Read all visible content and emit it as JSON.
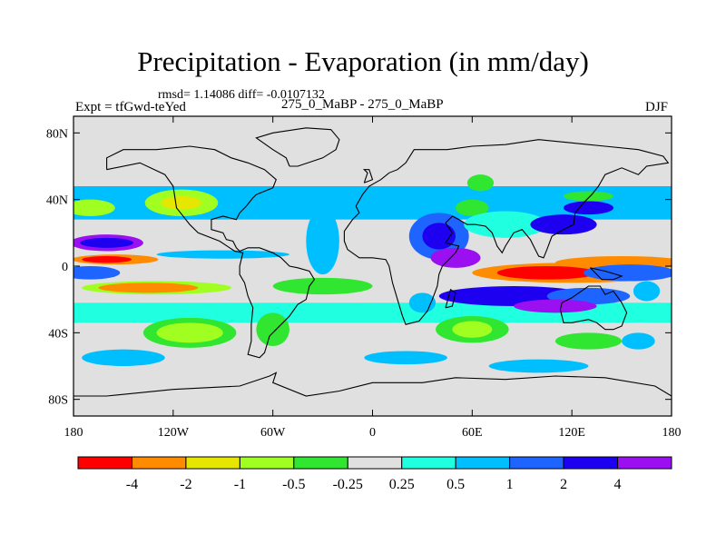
{
  "chart_data": {
    "type": "heatmap",
    "title": "Precipitation - Evaporation (in mm/day)",
    "stats_line": "rmsd= 1.14086 diff= -0.0107132",
    "left_label": "Expt = tfGwd-teYed",
    "center_label": "275_0_MaBP - 275_0_MaBP",
    "right_label": "DJF",
    "x_ticks": [
      "180",
      "120W",
      "60W",
      "0",
      "60E",
      "120E",
      "180"
    ],
    "x_tick_values": [
      -180,
      -120,
      -60,
      0,
      60,
      120,
      180
    ],
    "y_ticks": [
      "80N",
      "40N",
      "0",
      "40S",
      "80S"
    ],
    "y_tick_values": [
      80,
      40,
      0,
      -40,
      -80
    ],
    "xlim": [
      -180,
      180
    ],
    "ylim": [
      -90,
      90
    ],
    "colorbar": {
      "colors": [
        "#ff0000",
        "#ff8c00",
        "#e6e600",
        "#a0ff20",
        "#30e630",
        "#e0e0e0",
        "#20ffe0",
        "#00bfff",
        "#1e64ff",
        "#1e00f0",
        "#9b10f0"
      ],
      "labels": [
        "-4",
        "-2",
        "-1",
        "-0.5",
        "-0.25",
        "0.25",
        "0.5",
        "1",
        "2",
        "4"
      ]
    },
    "regions": [
      {
        "type": "band",
        "lat_min": 28,
        "lat_max": 48,
        "lon_min": -180,
        "lon_max": 180,
        "level": 7
      },
      {
        "type": "band",
        "lat_min": -34,
        "lat_max": -22,
        "lon_min": -180,
        "lon_max": 180,
        "level": 6
      },
      {
        "type": "blob",
        "lon": -115,
        "lat": 38,
        "dlon": 22,
        "dlat": 8,
        "level": 3
      },
      {
        "type": "blob",
        "lon": -115,
        "lat": 38,
        "dlon": 12,
        "dlat": 4,
        "level": 2
      },
      {
        "type": "blob",
        "lon": -170,
        "lat": 35,
        "dlon": 15,
        "dlat": 5,
        "level": 3
      },
      {
        "type": "blob",
        "lon": -160,
        "lat": 14,
        "dlon": 22,
        "dlat": 5,
        "level": 10
      },
      {
        "type": "blob",
        "lon": -160,
        "lat": 14,
        "dlon": 16,
        "dlat": 3,
        "level": 9
      },
      {
        "type": "blob",
        "lon": -155,
        "lat": 4,
        "dlon": 26,
        "dlat": 3,
        "level": 1
      },
      {
        "type": "blob",
        "lon": -160,
        "lat": 4,
        "dlon": 15,
        "dlat": 2,
        "level": 0
      },
      {
        "type": "blob",
        "lon": -90,
        "lat": 7,
        "dlon": 40,
        "dlat": 2.5,
        "level": 7
      },
      {
        "type": "blob",
        "lon": -130,
        "lat": -13,
        "dlon": 45,
        "dlat": 4,
        "level": 3
      },
      {
        "type": "blob",
        "lon": -135,
        "lat": -13,
        "dlon": 30,
        "dlat": 3,
        "level": 1
      },
      {
        "type": "blob",
        "lon": -170,
        "lat": -4,
        "dlon": 18,
        "dlat": 4,
        "level": 8
      },
      {
        "type": "blob",
        "lon": -110,
        "lat": -40,
        "dlon": 28,
        "dlat": 9,
        "level": 4
      },
      {
        "type": "blob",
        "lon": -110,
        "lat": -40,
        "dlon": 20,
        "dlat": 6,
        "level": 3
      },
      {
        "type": "blob",
        "lon": -30,
        "lat": 15,
        "dlon": 10,
        "dlat": 20,
        "level": 7
      },
      {
        "type": "blob",
        "lon": -30,
        "lat": -12,
        "dlon": 30,
        "dlat": 5,
        "level": 4
      },
      {
        "type": "blob",
        "lon": -60,
        "lat": -38,
        "dlon": 10,
        "dlat": 10,
        "level": 4
      },
      {
        "type": "blob",
        "lon": 40,
        "lat": 18,
        "dlon": 18,
        "dlat": 14,
        "level": 8
      },
      {
        "type": "blob",
        "lon": 40,
        "lat": 18,
        "dlon": 10,
        "dlat": 8,
        "level": 9
      },
      {
        "type": "blob",
        "lon": 50,
        "lat": 5,
        "dlon": 15,
        "dlat": 6,
        "level": 10
      },
      {
        "type": "blob",
        "lon": 60,
        "lat": 35,
        "dlon": 10,
        "dlat": 5,
        "level": 4
      },
      {
        "type": "blob",
        "lon": 65,
        "lat": 50,
        "dlon": 8,
        "dlat": 5,
        "level": 4
      },
      {
        "type": "blob",
        "lon": 80,
        "lat": 25,
        "dlon": 25,
        "dlat": 8,
        "level": 6
      },
      {
        "type": "blob",
        "lon": 115,
        "lat": 25,
        "dlon": 20,
        "dlat": 6,
        "level": 9
      },
      {
        "type": "blob",
        "lon": 130,
        "lat": 35,
        "dlon": 15,
        "dlat": 4,
        "level": 9
      },
      {
        "type": "blob",
        "lon": 130,
        "lat": 42,
        "dlon": 15,
        "dlat": 3,
        "level": 4
      },
      {
        "type": "blob",
        "lon": 120,
        "lat": -4,
        "dlon": 60,
        "dlat": 6,
        "level": 1
      },
      {
        "type": "blob",
        "lon": 150,
        "lat": 2,
        "dlon": 40,
        "dlat": 4,
        "level": 1
      },
      {
        "type": "blob",
        "lon": 105,
        "lat": -4,
        "dlon": 30,
        "dlat": 4,
        "level": 0
      },
      {
        "type": "blob",
        "lon": 155,
        "lat": -4,
        "dlon": 28,
        "dlat": 5,
        "level": 8
      },
      {
        "type": "blob",
        "lon": 85,
        "lat": -18,
        "dlon": 45,
        "dlat": 6,
        "level": 9
      },
      {
        "type": "blob",
        "lon": 130,
        "lat": -18,
        "dlon": 25,
        "dlat": 5,
        "level": 8
      },
      {
        "type": "blob",
        "lon": 110,
        "lat": -24,
        "dlon": 25,
        "dlat": 4,
        "level": 10
      },
      {
        "type": "blob",
        "lon": 60,
        "lat": -38,
        "dlon": 22,
        "dlat": 8,
        "level": 4
      },
      {
        "type": "blob",
        "lon": 60,
        "lat": -38,
        "dlon": 12,
        "dlat": 5,
        "level": 3
      },
      {
        "type": "blob",
        "lon": 30,
        "lat": -22,
        "dlon": 8,
        "dlat": 6,
        "level": 7
      },
      {
        "type": "blob",
        "lon": 130,
        "lat": -45,
        "dlon": 20,
        "dlat": 5,
        "level": 4
      },
      {
        "type": "blob",
        "lon": 160,
        "lat": -45,
        "dlon": 10,
        "dlat": 5,
        "level": 7
      },
      {
        "type": "blob",
        "lon": 165,
        "lat": -15,
        "dlon": 8,
        "dlat": 6,
        "level": 7
      },
      {
        "type": "blob",
        "lon": -150,
        "lat": -55,
        "dlon": 25,
        "dlat": 5,
        "level": 7
      },
      {
        "type": "blob",
        "lon": 20,
        "lat": -55,
        "dlon": 25,
        "dlat": 4,
        "level": 7
      },
      {
        "type": "blob",
        "lon": 100,
        "lat": -60,
        "dlon": 30,
        "dlat": 4,
        "level": 7
      }
    ],
    "outlines": [
      [
        [
          -160,
          58
        ],
        [
          -140,
          62
        ],
        [
          -125,
          55
        ],
        [
          -120,
          48
        ],
        [
          -118,
          35
        ],
        [
          -110,
          25
        ],
        [
          -105,
          20
        ],
        [
          -92,
          15
        ],
        [
          -83,
          9
        ],
        [
          -78,
          8
        ],
        [
          -80,
          0
        ],
        [
          -80,
          -5
        ],
        [
          -77,
          -10
        ],
        [
          -75,
          -18
        ],
        [
          -72,
          -25
        ],
        [
          -73,
          -35
        ],
        [
          -73,
          -45
        ],
        [
          -75,
          -53
        ],
        [
          -68,
          -55
        ],
        [
          -65,
          -52
        ],
        [
          -62,
          -42
        ],
        [
          -58,
          -38
        ],
        [
          -50,
          -30
        ],
        [
          -45,
          -23
        ],
        [
          -40,
          -20
        ],
        [
          -38,
          -12
        ],
        [
          -35,
          -8
        ],
        [
          -38,
          -3
        ],
        [
          -45,
          -1
        ],
        [
          -50,
          0
        ],
        [
          -55,
          5
        ],
        [
          -60,
          8
        ],
        [
          -68,
          11
        ],
        [
          -75,
          11
        ],
        [
          -80,
          9
        ],
        [
          -82,
          11
        ],
        [
          -84,
          15
        ],
        [
          -88,
          16
        ],
        [
          -90,
          20
        ],
        [
          -97,
          22
        ],
        [
          -97,
          28
        ],
        [
          -90,
          30
        ],
        [
          -82,
          28
        ],
        [
          -80,
          32
        ],
        [
          -76,
          36
        ],
        [
          -72,
          41
        ],
        [
          -70,
          43
        ],
        [
          -65,
          45
        ],
        [
          -60,
          47
        ],
        [
          -58,
          52
        ],
        [
          -65,
          58
        ],
        [
          -75,
          62
        ],
        [
          -85,
          65
        ],
        [
          -95,
          70
        ],
        [
          -110,
          72
        ],
        [
          -130,
          70
        ],
        [
          -150,
          70
        ],
        [
          -160,
          65
        ],
        [
          -160,
          58
        ]
      ],
      [
        [
          -10,
          36
        ],
        [
          -6,
          43
        ],
        [
          -2,
          48
        ],
        [
          5,
          52
        ],
        [
          10,
          56
        ],
        [
          15,
          58
        ],
        [
          20,
          62
        ],
        [
          25,
          70
        ],
        [
          35,
          70
        ],
        [
          45,
          70
        ],
        [
          60,
          72
        ],
        [
          80,
          73
        ],
        [
          100,
          76
        ],
        [
          120,
          74
        ],
        [
          140,
          72
        ],
        [
          160,
          70
        ],
        [
          175,
          66
        ],
        [
          178,
          62
        ],
        [
          165,
          60
        ],
        [
          160,
          55
        ],
        [
          150,
          59
        ],
        [
          140,
          55
        ],
        [
          136,
          48
        ],
        [
          132,
          43
        ],
        [
          127,
          38
        ],
        [
          122,
          32
        ],
        [
          121,
          25
        ],
        [
          115,
          22
        ],
        [
          108,
          18
        ],
        [
          105,
          10
        ],
        [
          103,
          5
        ],
        [
          100,
          6
        ],
        [
          98,
          10
        ],
        [
          95,
          16
        ],
        [
          90,
          22
        ],
        [
          85,
          20
        ],
        [
          80,
          12
        ],
        [
          78,
          8
        ],
        [
          75,
          12
        ],
        [
          72,
          20
        ],
        [
          68,
          24
        ],
        [
          62,
          25
        ],
        [
          57,
          25
        ],
        [
          52,
          28
        ],
        [
          48,
          30
        ],
        [
          44,
          26
        ],
        [
          48,
          20
        ],
        [
          44,
          14
        ],
        [
          52,
          12
        ],
        [
          50,
          8
        ],
        [
          42,
          0
        ],
        [
          40,
          -5
        ],
        [
          39,
          -12
        ],
        [
          36,
          -20
        ],
        [
          33,
          -27
        ],
        [
          28,
          -33
        ],
        [
          20,
          -35
        ],
        [
          18,
          -30
        ],
        [
          15,
          -20
        ],
        [
          12,
          -10
        ],
        [
          10,
          0
        ],
        [
          8,
          4
        ],
        [
          0,
          5
        ],
        [
          -8,
          5
        ],
        [
          -15,
          10
        ],
        [
          -17,
          15
        ],
        [
          -17,
          21
        ],
        [
          -12,
          28
        ],
        [
          -8,
          32
        ],
        [
          -10,
          36
        ]
      ],
      [
        [
          114,
          -22
        ],
        [
          120,
          -19
        ],
        [
          130,
          -12
        ],
        [
          137,
          -12
        ],
        [
          140,
          -17
        ],
        [
          145,
          -15
        ],
        [
          150,
          -22
        ],
        [
          153,
          -28
        ],
        [
          150,
          -36
        ],
        [
          145,
          -38
        ],
        [
          140,
          -38
        ],
        [
          135,
          -34
        ],
        [
          130,
          -32
        ],
        [
          120,
          -34
        ],
        [
          115,
          -34
        ],
        [
          113,
          -26
        ],
        [
          114,
          -22
        ]
      ],
      [
        [
          -50,
          60
        ],
        [
          -45,
          60
        ],
        [
          -30,
          65
        ],
        [
          -22,
          70
        ],
        [
          -20,
          76
        ],
        [
          -25,
          82
        ],
        [
          -40,
          83
        ],
        [
          -60,
          80
        ],
        [
          -70,
          77
        ],
        [
          -60,
          70
        ],
        [
          -52,
          65
        ],
        [
          -50,
          60
        ]
      ],
      [
        [
          -180,
          -78
        ],
        [
          -160,
          -78
        ],
        [
          -120,
          -74
        ],
        [
          -80,
          -72
        ],
        [
          -62,
          -66
        ],
        [
          -58,
          -64
        ],
        [
          -60,
          -70
        ],
        [
          -40,
          -78
        ],
        [
          -20,
          -75
        ],
        [
          0,
          -70
        ],
        [
          30,
          -70
        ],
        [
          50,
          -67
        ],
        [
          80,
          -68
        ],
        [
          110,
          -66
        ],
        [
          140,
          -67
        ],
        [
          170,
          -72
        ],
        [
          180,
          -78
        ],
        [
          180,
          -90
        ],
        [
          -180,
          -90
        ],
        [
          -180,
          -78
        ]
      ],
      [
        [
          44,
          -25
        ],
        [
          47,
          -14
        ],
        [
          50,
          -16
        ],
        [
          48,
          -24
        ],
        [
          44,
          -25
        ]
      ],
      [
        [
          131,
          -1
        ],
        [
          140,
          -3
        ],
        [
          150,
          -6
        ],
        [
          145,
          -8
        ],
        [
          138,
          -8
        ],
        [
          131,
          -1
        ]
      ],
      [
        [
          -5,
          50
        ],
        [
          -3,
          56
        ],
        [
          -5,
          58
        ],
        [
          -2,
          58
        ],
        [
          0,
          52
        ],
        [
          -5,
          50
        ]
      ]
    ]
  }
}
